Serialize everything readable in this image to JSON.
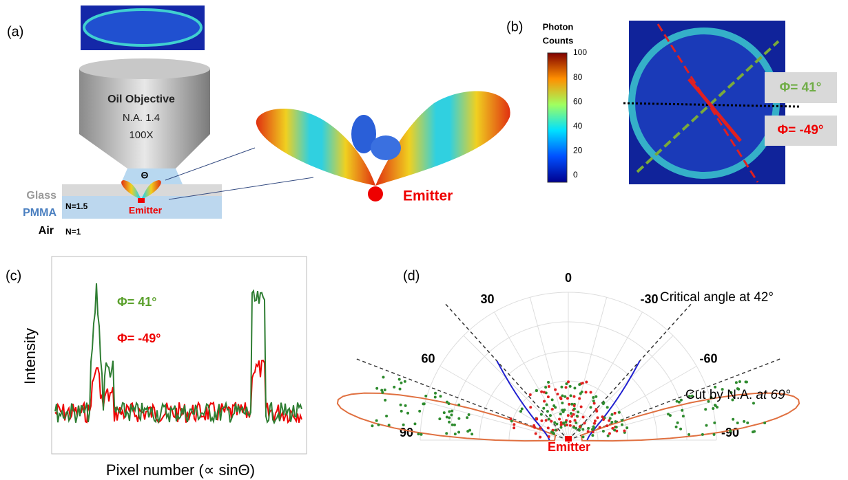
{
  "panel_a": {
    "label": "(a)",
    "objective": {
      "name": "Oil Objective",
      "aperture": "N.A. 1.4",
      "magnification": "100X"
    },
    "theta": "Θ",
    "layers": {
      "glass": "Glass",
      "pmma": "PMMA",
      "air": "Air",
      "n_pmma": "N=1.5",
      "n_air": "N=1"
    },
    "emitter_small": "Emitter",
    "emitter_large": "Emitter"
  },
  "panel_b": {
    "label": "(b)",
    "colorbar_title": [
      "Photon",
      "Counts"
    ],
    "colorbar_ticks": [
      "100",
      "80",
      "60",
      "40",
      "20",
      "0"
    ],
    "phi_green": "Φ= 41°",
    "phi_red": "Φ= -49°"
  },
  "panel_c": {
    "label": "(c)",
    "y_label": "Intensity",
    "x_label": "Pixel number (∝ sinΘ)",
    "legend_green": "Φ= 41°",
    "legend_red": "Φ= -49°"
  },
  "panel_d": {
    "label": "(d)",
    "angles": [
      "0",
      "30",
      "-30",
      "60",
      "-60",
      "90",
      "-90"
    ],
    "critical": "Critical angle at 42°",
    "cut": "Cut by N.A.",
    "cut_angle": "at 69°",
    "emitter": "Emitter"
  }
}
